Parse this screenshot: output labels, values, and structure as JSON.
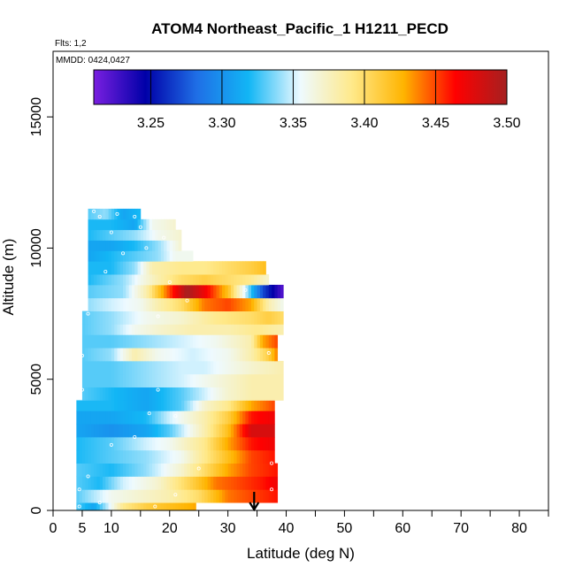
{
  "chart_data": {
    "type": "heatmap",
    "title": "ATOM4 Northeast_Pacific_1 H1211_PECD",
    "flights_note": "Flts: 1,2",
    "dates_note": "MMDD: 0424,0427",
    "xlabel": "Latitude (deg N)",
    "ylabel": "Altitude (m)",
    "xlim": [
      0,
      85
    ],
    "ylim": [
      0,
      17500
    ],
    "x_ticks": [
      0,
      5,
      10,
      20,
      30,
      40,
      50,
      60,
      70,
      80
    ],
    "y_ticks": [
      0,
      5000,
      10000,
      15000
    ],
    "colorbar": {
      "min": 3.21,
      "max": 3.5,
      "ticks": [
        "3.25",
        "3.30",
        "3.35",
        "3.40",
        "3.45",
        "3.50"
      ],
      "tick_values": [
        3.25,
        3.3,
        3.35,
        3.4,
        3.45,
        3.5
      ],
      "colors": [
        "#7a1fe0",
        "#0000a8",
        "#1f6fe6",
        "#12b6f5",
        "#eefaff",
        "#ffe98a",
        "#ffb400",
        "#ff0000",
        "#a52020"
      ]
    },
    "marker": {
      "latitude": 34.5,
      "symbol": "arrow"
    },
    "rows": [
      {
        "alt_min": 0,
        "alt_max": 300,
        "lat_min": 4,
        "lat_max": 24.5,
        "points": [
          [
            4,
            3.33
          ],
          [
            7,
            3.31
          ],
          [
            12,
            3.39
          ],
          [
            16,
            3.41
          ],
          [
            20,
            3.42
          ],
          [
            24.5,
            3.43
          ]
        ]
      },
      {
        "alt_min": 300,
        "alt_max": 800,
        "lat_min": 4,
        "lat_max": 38.5,
        "points": [
          [
            4,
            3.33
          ],
          [
            10,
            3.36
          ],
          [
            15,
            3.37
          ],
          [
            20,
            3.38
          ],
          [
            25,
            3.4
          ],
          [
            30,
            3.44
          ],
          [
            34,
            3.45
          ],
          [
            38.5,
            3.46
          ]
        ]
      },
      {
        "alt_min": 800,
        "alt_max": 1300,
        "lat_min": 4,
        "lat_max": 38.5,
        "points": [
          [
            4,
            3.33
          ],
          [
            8,
            3.32
          ],
          [
            12,
            3.35
          ],
          [
            18,
            3.37
          ],
          [
            24,
            3.41
          ],
          [
            28,
            3.44
          ],
          [
            32,
            3.45
          ],
          [
            36,
            3.46
          ],
          [
            38.5,
            3.47
          ]
        ]
      },
      {
        "alt_min": 1300,
        "alt_max": 1800,
        "lat_min": 4,
        "lat_max": 38.5,
        "points": [
          [
            4,
            3.33
          ],
          [
            10,
            3.32
          ],
          [
            16,
            3.34
          ],
          [
            22,
            3.37
          ],
          [
            26,
            3.4
          ],
          [
            30,
            3.43
          ],
          [
            34,
            3.45
          ],
          [
            38.5,
            3.46
          ]
        ]
      },
      {
        "alt_min": 1800,
        "alt_max": 2300,
        "lat_min": 4,
        "lat_max": 38,
        "points": [
          [
            4,
            3.32
          ],
          [
            10,
            3.33
          ],
          [
            16,
            3.34
          ],
          [
            22,
            3.36
          ],
          [
            26,
            3.39
          ],
          [
            30,
            3.42
          ],
          [
            34,
            3.45
          ],
          [
            38,
            3.46
          ]
        ]
      },
      {
        "alt_min": 2300,
        "alt_max": 2800,
        "lat_min": 4,
        "lat_max": 38,
        "points": [
          [
            4,
            3.32
          ],
          [
            10,
            3.33
          ],
          [
            16,
            3.35
          ],
          [
            20,
            3.36
          ],
          [
            26,
            3.39
          ],
          [
            30,
            3.43
          ],
          [
            34,
            3.46
          ],
          [
            38,
            3.47
          ]
        ]
      },
      {
        "alt_min": 2800,
        "alt_max": 3300,
        "lat_min": 4,
        "lat_max": 38,
        "points": [
          [
            4,
            3.31
          ],
          [
            10,
            3.3
          ],
          [
            16,
            3.31
          ],
          [
            20,
            3.33
          ],
          [
            26,
            3.38
          ],
          [
            30,
            3.42
          ],
          [
            34,
            3.48
          ],
          [
            38,
            3.48
          ]
        ]
      },
      {
        "alt_min": 3300,
        "alt_max": 3800,
        "lat_min": 4,
        "lat_max": 38,
        "points": [
          [
            4,
            3.31
          ],
          [
            10,
            3.31
          ],
          [
            16,
            3.32
          ],
          [
            20,
            3.35
          ],
          [
            26,
            3.38
          ],
          [
            30,
            3.41
          ],
          [
            34,
            3.46
          ],
          [
            38,
            3.47
          ]
        ]
      },
      {
        "alt_min": 3800,
        "alt_max": 4200,
        "lat_min": 4,
        "lat_max": 38,
        "points": [
          [
            4,
            3.32
          ],
          [
            10,
            3.32
          ],
          [
            16,
            3.31
          ],
          [
            22,
            3.33
          ],
          [
            26,
            3.37
          ],
          [
            30,
            3.39
          ],
          [
            34,
            3.43
          ],
          [
            38,
            3.45
          ]
        ]
      },
      {
        "alt_min": 4200,
        "alt_max": 4700,
        "lat_min": 5,
        "lat_max": 39.5,
        "points": [
          [
            5,
            3.33
          ],
          [
            10,
            3.32
          ],
          [
            16,
            3.31
          ],
          [
            22,
            3.33
          ],
          [
            26,
            3.35
          ],
          [
            30,
            3.37
          ],
          [
            34,
            3.38
          ],
          [
            39.5,
            3.38
          ]
        ]
      },
      {
        "alt_min": 4700,
        "alt_max": 5200,
        "lat_min": 5,
        "lat_max": 39.5,
        "points": [
          [
            5,
            3.33
          ],
          [
            10,
            3.33
          ],
          [
            16,
            3.34
          ],
          [
            22,
            3.35
          ],
          [
            26,
            3.36
          ],
          [
            30,
            3.37
          ],
          [
            34,
            3.38
          ],
          [
            39.5,
            3.38
          ]
        ]
      },
      {
        "alt_min": 5200,
        "alt_max": 5700,
        "lat_min": 5,
        "lat_max": 39.5,
        "points": [
          [
            5,
            3.33
          ],
          [
            10,
            3.33
          ],
          [
            16,
            3.34
          ],
          [
            22,
            3.35
          ],
          [
            26,
            3.35
          ],
          [
            30,
            3.36
          ],
          [
            34,
            3.37
          ],
          [
            39.5,
            3.38
          ]
        ]
      },
      {
        "alt_min": 5700,
        "alt_max": 6200,
        "lat_min": 5,
        "lat_max": 38.5,
        "points": [
          [
            5,
            3.33
          ],
          [
            10,
            3.34
          ],
          [
            14,
            3.38
          ],
          [
            18,
            3.36
          ],
          [
            24,
            3.35
          ],
          [
            30,
            3.36
          ],
          [
            34,
            3.38
          ],
          [
            37,
            3.41
          ],
          [
            38.5,
            3.44
          ]
        ]
      },
      {
        "alt_min": 6200,
        "alt_max": 6700,
        "lat_min": 5,
        "lat_max": 38.5,
        "points": [
          [
            5,
            3.33
          ],
          [
            10,
            3.33
          ],
          [
            16,
            3.34
          ],
          [
            22,
            3.35
          ],
          [
            28,
            3.36
          ],
          [
            34,
            3.38
          ],
          [
            36,
            3.43
          ],
          [
            38.5,
            3.45
          ]
        ]
      },
      {
        "alt_min": 6700,
        "alt_max": 7100,
        "lat_min": 5,
        "lat_max": 39.5,
        "points": [
          [
            5,
            3.33
          ],
          [
            10,
            3.34
          ],
          [
            14,
            3.36
          ],
          [
            18,
            3.37
          ],
          [
            24,
            3.38
          ],
          [
            30,
            3.38
          ],
          [
            35,
            3.39
          ],
          [
            39.5,
            3.38
          ]
        ]
      },
      {
        "alt_min": 7100,
        "alt_max": 7600,
        "lat_min": 5,
        "lat_max": 39.5,
        "points": [
          [
            5,
            3.33
          ],
          [
            10,
            3.34
          ],
          [
            16,
            3.36
          ],
          [
            22,
            3.37
          ],
          [
            28,
            3.39
          ],
          [
            34,
            3.4
          ],
          [
            37,
            3.41
          ],
          [
            39.5,
            3.4
          ]
        ]
      },
      {
        "alt_min": 7600,
        "alt_max": 8100,
        "lat_min": 6,
        "lat_max": 39.5,
        "points": [
          [
            6,
            3.34
          ],
          [
            10,
            3.35
          ],
          [
            15,
            3.36
          ],
          [
            18,
            3.38
          ],
          [
            22,
            3.4
          ],
          [
            26,
            3.44
          ],
          [
            30,
            3.45
          ],
          [
            34,
            3.43
          ],
          [
            37,
            3.38
          ],
          [
            39.5,
            3.36
          ]
        ]
      },
      {
        "alt_min": 8100,
        "alt_max": 8600,
        "lat_min": 6,
        "lat_max": 39.5,
        "points": [
          [
            6,
            3.33
          ],
          [
            12,
            3.34
          ],
          [
            16,
            3.38
          ],
          [
            20,
            3.45
          ],
          [
            23,
            3.5
          ],
          [
            26,
            3.47
          ],
          [
            30,
            3.42
          ],
          [
            33,
            3.35
          ],
          [
            36,
            3.27
          ],
          [
            39.5,
            3.22
          ]
        ]
      },
      {
        "alt_min": 8600,
        "alt_max": 9000,
        "lat_min": 6,
        "lat_max": 37,
        "points": [
          [
            6,
            3.32
          ],
          [
            12,
            3.34
          ],
          [
            18,
            3.38
          ],
          [
            22,
            3.4
          ],
          [
            26,
            3.41
          ],
          [
            30,
            3.4
          ],
          [
            34,
            3.39
          ],
          [
            37,
            3.37
          ]
        ]
      },
      {
        "alt_min": 9000,
        "alt_max": 9500,
        "lat_min": 6,
        "lat_max": 36.5,
        "points": [
          [
            6,
            3.32
          ],
          [
            10,
            3.32
          ],
          [
            14,
            3.34
          ],
          [
            17,
            3.38
          ],
          [
            22,
            3.39
          ],
          [
            26,
            3.39
          ],
          [
            30,
            3.4
          ],
          [
            34,
            3.41
          ],
          [
            36.5,
            3.42
          ]
        ]
      },
      {
        "alt_min": 9500,
        "alt_max": 9900,
        "lat_min": 6,
        "lat_max": 24,
        "points": [
          [
            6,
            3.31
          ],
          [
            10,
            3.32
          ],
          [
            14,
            3.33
          ],
          [
            18,
            3.34
          ],
          [
            21,
            3.36
          ],
          [
            24,
            3.36
          ]
        ]
      },
      {
        "alt_min": 9900,
        "alt_max": 10300,
        "lat_min": 6,
        "lat_max": 22,
        "points": [
          [
            6,
            3.31
          ],
          [
            10,
            3.31
          ],
          [
            14,
            3.32
          ],
          [
            18,
            3.34
          ],
          [
            22,
            3.37
          ]
        ]
      },
      {
        "alt_min": 10300,
        "alt_max": 10700,
        "lat_min": 6,
        "lat_max": 22,
        "points": [
          [
            6,
            3.32
          ],
          [
            10,
            3.33
          ],
          [
            14,
            3.34
          ],
          [
            18,
            3.36
          ],
          [
            22,
            3.37
          ]
        ]
      },
      {
        "alt_min": 10700,
        "alt_max": 11100,
        "lat_min": 6,
        "lat_max": 21,
        "points": [
          [
            6,
            3.32
          ],
          [
            10,
            3.32
          ],
          [
            14,
            3.31
          ],
          [
            17,
            3.36
          ],
          [
            21,
            3.37
          ]
        ]
      },
      {
        "alt_min": 11100,
        "alt_max": 11500,
        "lat_min": 6,
        "lat_max": 15,
        "points": [
          [
            6,
            3.33
          ],
          [
            9,
            3.34
          ],
          [
            12,
            3.31
          ],
          [
            15,
            3.32
          ]
        ]
      }
    ],
    "sample_points": [
      [
        4.5,
        150
      ],
      [
        8,
        300
      ],
      [
        17.5,
        150
      ],
      [
        4.5,
        800
      ],
      [
        21,
        600
      ],
      [
        37.5,
        800
      ],
      [
        6,
        1300
      ],
      [
        25,
        1600
      ],
      [
        37.5,
        1800
      ],
      [
        10,
        2500
      ],
      [
        14,
        2800
      ],
      [
        21,
        3600
      ],
      [
        16.5,
        3700
      ],
      [
        5,
        4600
      ],
      [
        18,
        4600
      ],
      [
        5,
        5900
      ],
      [
        37,
        6000
      ],
      [
        6,
        7500
      ],
      [
        18,
        7400
      ],
      [
        23,
        8000
      ],
      [
        33,
        8400
      ],
      [
        20,
        8700
      ],
      [
        9,
        9100
      ],
      [
        12,
        9800
      ],
      [
        16,
        10000
      ],
      [
        5,
        10500
      ],
      [
        10,
        10600
      ],
      [
        15,
        10800
      ],
      [
        19,
        10400
      ],
      [
        8,
        11200
      ],
      [
        11,
        11300
      ],
      [
        14,
        11200
      ],
      [
        7,
        11400
      ]
    ]
  }
}
